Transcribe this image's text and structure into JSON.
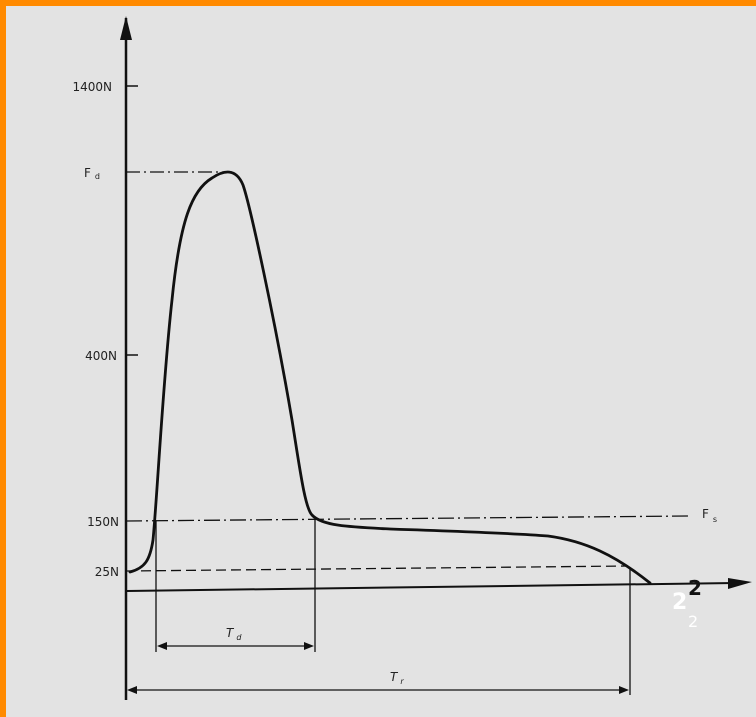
{
  "diagram": {
    "y_axis_labels": {
      "l1400": "1400N",
      "fd": "F",
      "fd_sub": "d",
      "l400": "400N",
      "l150": "150N",
      "l25": "25N"
    },
    "fs_label": "F",
    "fs_sub": "s",
    "td_label": "T",
    "td_sub": "d",
    "tr_label": "T",
    "tr_sub": "r",
    "x_axis_number": "2",
    "x_axis_overlay_number": "2",
    "x_axis_overlay_sub": "2"
  },
  "colors": {
    "border": "#ff8a00",
    "background": "#e3e3e3",
    "ink": "#111111"
  }
}
